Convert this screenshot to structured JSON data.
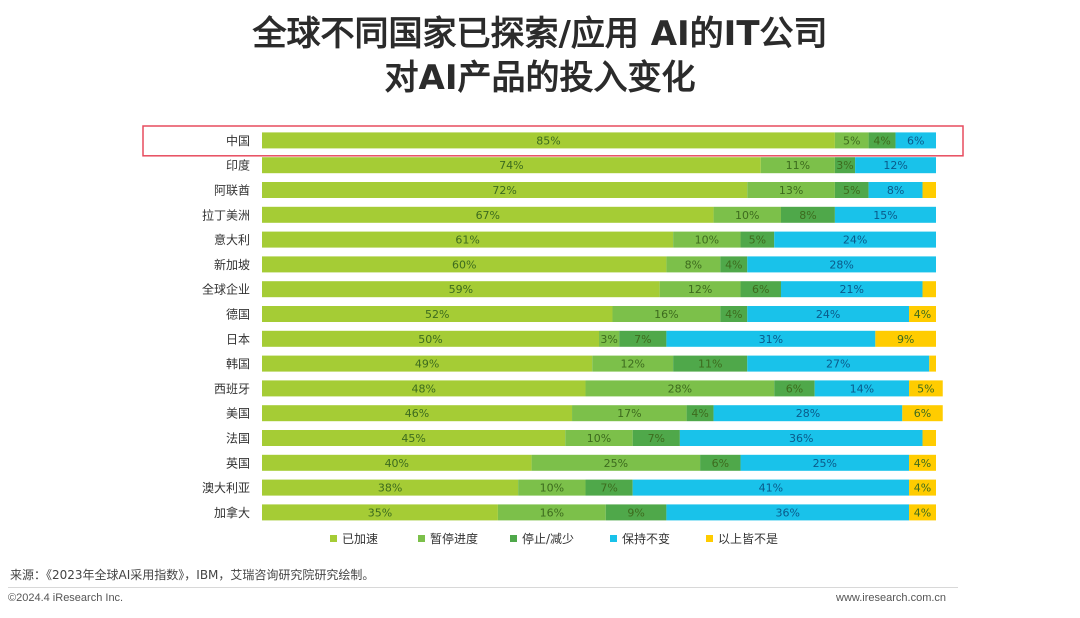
{
  "header": {
    "title_line1": "全球不同国家已探索/应用 AI的IT公司",
    "title_line2": "对AI产品的投入变化"
  },
  "chart_data": {
    "type": "bar",
    "orientation": "horizontal",
    "stacked": true,
    "percent": true,
    "categories": [
      "中国",
      "印度",
      "阿联酋",
      "拉丁美洲",
      "意大利",
      "新加坡",
      "全球企业",
      "德国",
      "日本",
      "韩国",
      "西班牙",
      "美国",
      "法国",
      "英国",
      "澳大利亚",
      "加拿大"
    ],
    "series": [
      {
        "name": "已加速",
        "color": "#a5cc35",
        "values": [
          85,
          74,
          72,
          67,
          61,
          60,
          59,
          52,
          50,
          49,
          48,
          46,
          45,
          40,
          38,
          35
        ]
      },
      {
        "name": "暂停进度",
        "color": "#7cc04a",
        "values": [
          5,
          11,
          13,
          10,
          10,
          8,
          12,
          16,
          3,
          12,
          28,
          17,
          10,
          25,
          10,
          16
        ]
      },
      {
        "name": "停止/减少",
        "color": "#4fa84a",
        "values": [
          4,
          3,
          5,
          8,
          5,
          4,
          6,
          4,
          7,
          11,
          6,
          4,
          7,
          6,
          7,
          9
        ]
      },
      {
        "name": "保持不变",
        "color": "#19c2ea",
        "values": [
          6,
          12,
          8,
          15,
          24,
          28,
          21,
          24,
          31,
          27,
          14,
          28,
          36,
          25,
          41,
          36
        ]
      },
      {
        "name": "以上皆不是",
        "color": "#ffcc00",
        "values": [
          0,
          0,
          2,
          0,
          0,
          0,
          2,
          4,
          9,
          1,
          5,
          6,
          2,
          4,
          4,
          4
        ]
      }
    ],
    "xlim": [
      0,
      100
    ],
    "legend_position": "bottom",
    "highlighted_category": "中国",
    "highlight_color": "#e74c5e"
  },
  "footer": {
    "source": "来源：《2023年全球AI采用指数》，IBM，艾瑞咨询研究院研究绘制。",
    "copyright": "©2024.4 iResearch Inc.",
    "url": "www.iresearch.com.cn"
  }
}
